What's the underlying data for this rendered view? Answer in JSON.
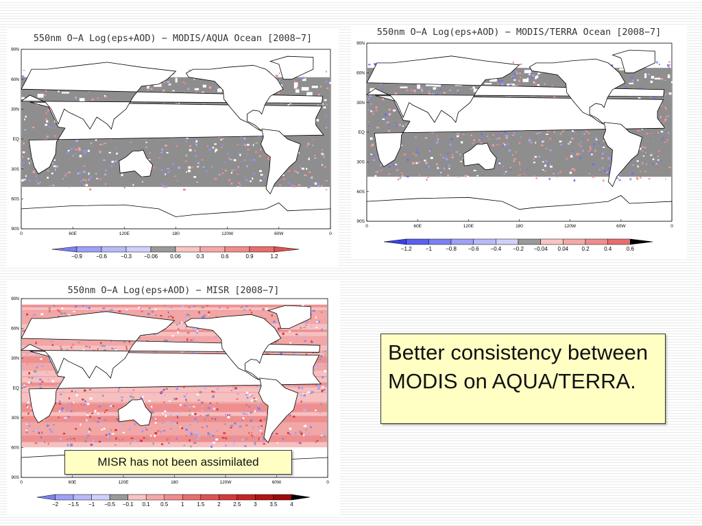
{
  "colors": {
    "gray": "#8e8e8e",
    "note_bg": "#ffffc4",
    "blue_dark": "#2233dd",
    "red_dark": "#cc2222"
  },
  "lat_labels": [
    "90N",
    "60N",
    "30N",
    "EQ",
    "30S",
    "60S",
    "90S"
  ],
  "lon_labels": [
    "0",
    "60E",
    "120E",
    "180",
    "120W",
    "60W",
    "0"
  ],
  "panels": [
    {
      "id": "aqua",
      "title": "550nm O−A Log(eps+AOD) − MODIS/AQUA  Ocean [2008−7]",
      "colorbar": [
        "−0.9",
        "−0.6",
        "−0.3",
        "−0.06",
        "0.06",
        "0.3",
        "0.6",
        "0.9",
        "1.2"
      ]
    },
    {
      "id": "terra",
      "title": "550nm O−A Log(eps+AOD) − MODIS/TERRA Ocean [2008−7]",
      "colorbar": [
        "−1.2",
        "−1",
        "−0.8",
        "−0.6",
        "−0.4",
        "−0.2",
        "−0.04",
        "0.04",
        "0.2",
        "0.4",
        "0.6"
      ]
    },
    {
      "id": "misr",
      "title": "550nm O−A Log(eps+AOD) − MISR [2008−7]",
      "colorbar": [
        "−2",
        "−1.5",
        "−1",
        "−0.5",
        "−0.1",
        "0.1",
        "0.5",
        "1",
        "1.5",
        "2",
        "2.5",
        "3",
        "3.5",
        "4"
      ]
    }
  ],
  "notes": {
    "misr_note": "MISR has not been assimilated",
    "conclusion": "Better consistency between MODIS on AQUA/TERRA."
  }
}
